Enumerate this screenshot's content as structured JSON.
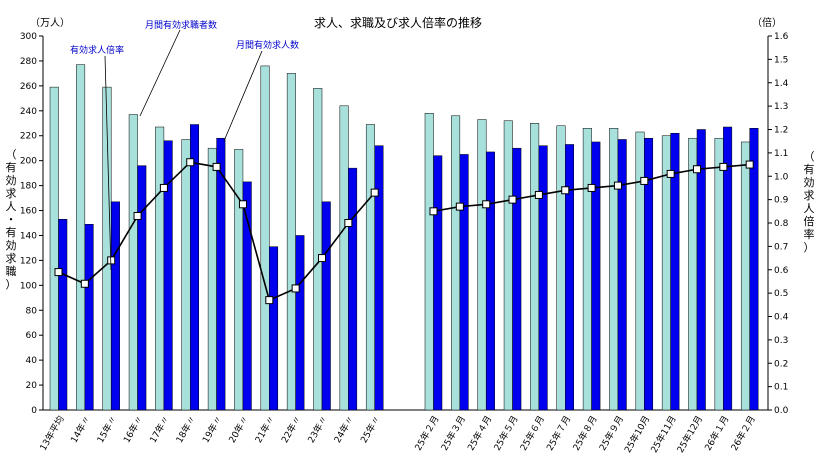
{
  "chart_data": {
    "type": "bar",
    "title": "求人、求職及び求人倍率の推移",
    "left_unit": "（万人）",
    "right_unit": "（倍）",
    "left_label_chars": [
      "（",
      "有",
      "効",
      "求",
      "人",
      "・",
      "有",
      "効",
      "求",
      "職",
      "）"
    ],
    "right_label_chars": [
      "（",
      "有",
      "効",
      "求",
      "人",
      "倍",
      "率",
      "）"
    ],
    "ylim_left": [
      0,
      300
    ],
    "ylim_right": [
      0,
      1.6
    ],
    "y_ticks_left": [
      "0",
      "20",
      "40",
      "60",
      "80",
      "100",
      "120",
      "140",
      "160",
      "180",
      "200",
      "220",
      "240",
      "260",
      "280",
      "300"
    ],
    "y_ticks_right": [
      "0.0",
      "0.1",
      "0.2",
      "0.3",
      "0.4",
      "0.5",
      "0.6",
      "0.7",
      "0.8",
      "0.9",
      "1.0",
      "1.1",
      "1.2",
      "1.3",
      "1.4",
      "1.5",
      "1.6"
    ],
    "categories_annual": [
      "13年平均",
      "14年〃",
      "15年〃",
      "16年〃",
      "17年〃",
      "18年〃",
      "19年〃",
      "20年〃",
      "21年〃",
      "22年〃",
      "23年〃",
      "24年〃",
      "25年〃"
    ],
    "categories_monthly": [
      "25年２月",
      "25年３月",
      "25年４月",
      "25年５月",
      "25年６月",
      "25年７月",
      "25年８月",
      "25年９月",
      "25年10月",
      "25年11月",
      "25年12月",
      "26年１月",
      "26年２月"
    ],
    "series": [
      {
        "name": "月間有効求職者数",
        "color": "#a8e0dc",
        "annual": [
          259,
          277,
          259,
          237,
          227,
          217,
          210,
          209,
          276,
          270,
          258,
          244,
          229
        ],
        "monthly": [
          238,
          236,
          233,
          232,
          230,
          228,
          226,
          226,
          223,
          220,
          218,
          218,
          215
        ]
      },
      {
        "name": "月間有効求人数",
        "color": "#0000ee",
        "annual": [
          153,
          149,
          167,
          196,
          216,
          229,
          218,
          183,
          131,
          140,
          167,
          194,
          212
        ],
        "monthly": [
          204,
          205,
          207,
          210,
          212,
          213,
          215,
          217,
          218,
          222,
          225,
          227,
          226
        ]
      },
      {
        "name": "有効求人倍率",
        "color": "#000000",
        "annual": [
          0.59,
          0.54,
          0.64,
          0.83,
          0.95,
          1.06,
          1.04,
          0.88,
          0.47,
          0.52,
          0.65,
          0.8,
          0.93
        ],
        "monthly": [
          0.85,
          0.87,
          0.88,
          0.9,
          0.92,
          0.94,
          0.95,
          0.96,
          0.98,
          1.01,
          1.03,
          1.04,
          1.05
        ]
      }
    ],
    "annotations": [
      "月間有効求職者数",
      "有効求人倍率",
      "月間有効求人数"
    ]
  }
}
